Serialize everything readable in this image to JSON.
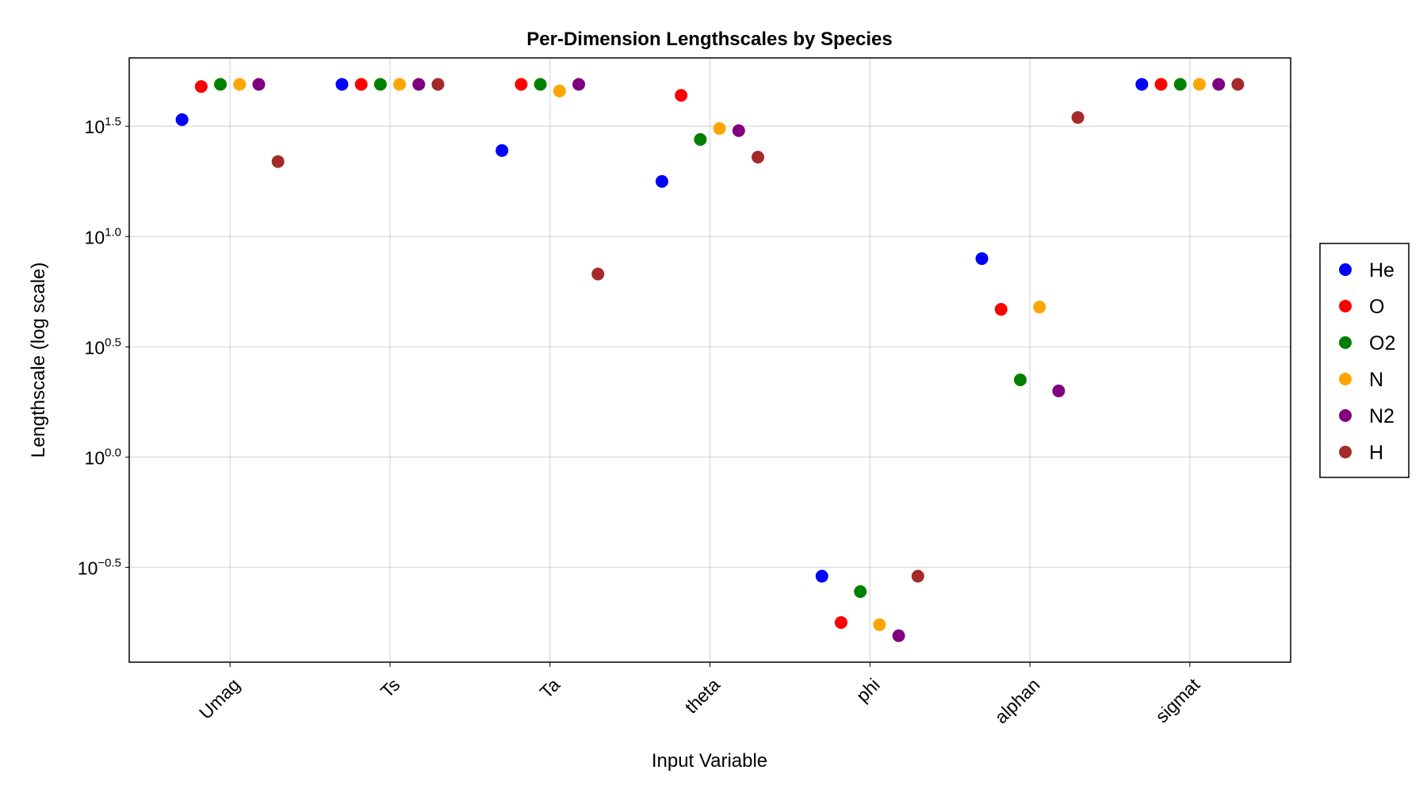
{
  "chart_data": {
    "type": "scatter",
    "title": "Per-Dimension Lengthscales by Species",
    "xlabel": "Input Variable",
    "ylabel": "Lengthscale (log scale)",
    "y_scale": "log10",
    "ylim_log10": [
      -0.93,
      1.81
    ],
    "y_ticks": [
      {
        "v": 1.5,
        "exp": "1.5"
      },
      {
        "v": 1.0,
        "exp": "1.0"
      },
      {
        "v": 0.5,
        "exp": "0.5"
      },
      {
        "v": 0.0,
        "exp": "0.0"
      },
      {
        "v": -0.5,
        "exp": "−0.5"
      }
    ],
    "y_tick_base": "10",
    "categories": [
      "Umag",
      "Ts",
      "Ta",
      "theta",
      "phi",
      "alphan",
      "sigmat"
    ],
    "grid": true,
    "legend_position": "right",
    "series": [
      {
        "name": "He",
        "color": "#0000ff",
        "log10_values": [
          1.53,
          1.69,
          1.39,
          1.25,
          -0.54,
          0.9,
          1.69
        ]
      },
      {
        "name": "O",
        "color": "#ff0000",
        "log10_values": [
          1.68,
          1.69,
          1.69,
          1.64,
          -0.75,
          0.67,
          1.69
        ]
      },
      {
        "name": "O2",
        "color": "#008000",
        "log10_values": [
          1.69,
          1.69,
          1.69,
          1.44,
          -0.61,
          0.35,
          1.69
        ]
      },
      {
        "name": "N",
        "color": "#ffa500",
        "log10_values": [
          1.69,
          1.69,
          1.66,
          1.49,
          -0.76,
          0.68,
          1.69
        ]
      },
      {
        "name": "N2",
        "color": "#800080",
        "log10_values": [
          1.69,
          1.69,
          1.69,
          1.48,
          -0.81,
          0.3,
          1.69
        ]
      },
      {
        "name": "H",
        "color": "#a52a2a",
        "log10_values": [
          1.34,
          1.69,
          0.83,
          1.36,
          -0.54,
          1.54,
          1.69
        ]
      }
    ]
  }
}
